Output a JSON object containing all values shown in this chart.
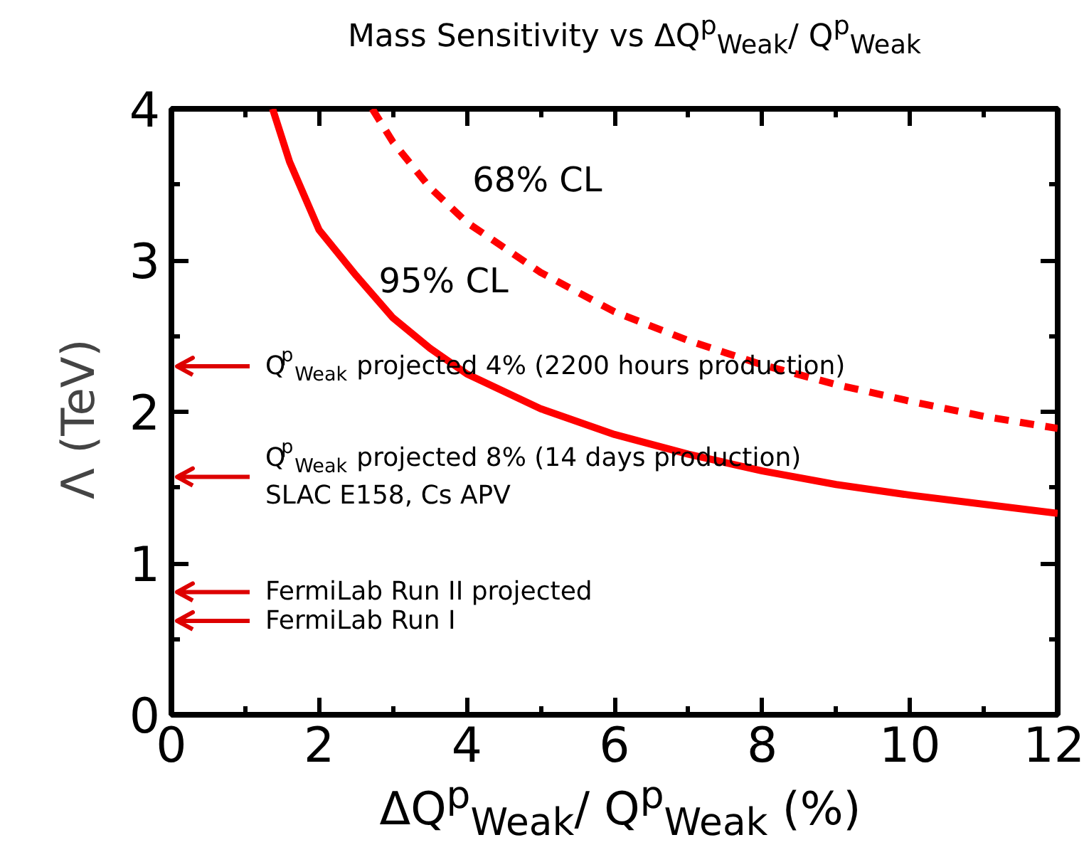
{
  "chart_data": {
    "type": "line",
    "title": "Mass Sensitivity vs ΔQ$^{p}$$_{Weak}$/ Q$^{p}$$_{Weak}$",
    "xlabel": "ΔQ$^{p}$$_{Weak}$/ Q$^{p}$$_{Weak}$ (%)",
    "ylabel": "Λ  (TeV)",
    "xlim": [
      0,
      12
    ],
    "ylim": [
      0,
      4
    ],
    "xticks": [
      0,
      {
        "value": 1,
        "label": null
      },
      2,
      {
        "value": 3,
        "label": null
      },
      4,
      {
        "value": 5,
        "label": null
      },
      6,
      {
        "value": 7,
        "label": null
      },
      8,
      {
        "value": 9,
        "label": null
      },
      10,
      {
        "value": 11,
        "label": null
      },
      12
    ],
    "yticks": [
      0,
      {
        "value": 0.5,
        "label": null
      },
      1,
      {
        "value": 1.5,
        "label": null
      },
      2,
      {
        "value": 2.5,
        "label": null
      },
      3,
      {
        "value": 3.5,
        "label": null
      },
      4
    ],
    "grid": false,
    "marker": "none",
    "series": [
      {
        "name": "95% CL",
        "color": "#ff0000",
        "line_style": "solid",
        "x": [
          1.37,
          1.6,
          2,
          2.5,
          3,
          3.5,
          4,
          5,
          6,
          7,
          8,
          9,
          10,
          11,
          12
        ],
        "values": [
          4.0,
          3.65,
          3.2,
          2.9,
          2.62,
          2.42,
          2.25,
          2.02,
          1.85,
          1.72,
          1.61,
          1.52,
          1.45,
          1.39,
          1.33
        ]
      },
      {
        "name": "68% CL",
        "color": "#ff0000",
        "line_style": "dashed",
        "x": [
          2.72,
          3,
          3.5,
          4,
          5,
          6,
          7,
          8,
          9,
          10,
          11,
          12
        ],
        "values": [
          4.0,
          3.78,
          3.48,
          3.25,
          2.92,
          2.66,
          2.47,
          2.31,
          2.18,
          2.07,
          1.97,
          1.89
        ]
      }
    ],
    "ref_lines": [
      {
        "axis": "y",
        "value": 2.3,
        "label": "Q$^{p}$$_{Weak}$ projected 4% (2200 hours production)",
        "color": "#dd0000"
      },
      {
        "axis": "y",
        "value": 1.57,
        "label": "Q$^{p}$$_{Weak}$ projected 8% (14 days production)\nSLAC E158, Cs APV",
        "color": "#dd0000"
      },
      {
        "axis": "y",
        "value": 0.81,
        "label": "FermiLab Run II projected",
        "color": "#dd0000"
      },
      {
        "axis": "y",
        "value": 0.62,
        "label": "FermiLab Run I",
        "color": "#dd0000"
      }
    ]
  }
}
